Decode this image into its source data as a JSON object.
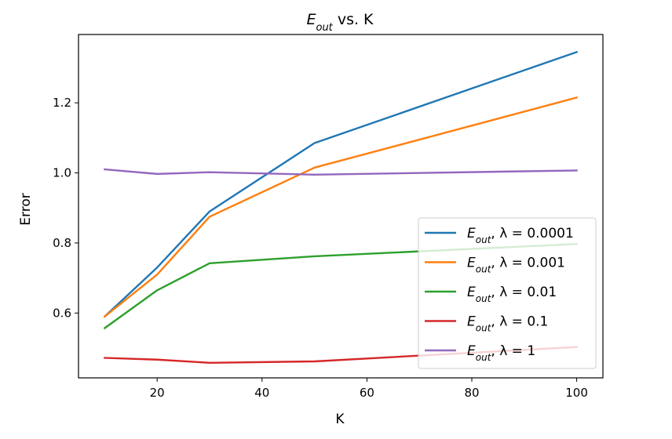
{
  "chart_data": {
    "type": "line",
    "title": {
      "symbol": "E",
      "subscript": "out",
      "suffix": " vs. K"
    },
    "xlabel": "K",
    "ylabel": "Error",
    "xlim": [
      5,
      105
    ],
    "ylim": [
      0.415,
      1.395
    ],
    "xticks": [
      20,
      40,
      60,
      80,
      100
    ],
    "yticks": [
      0.6,
      0.8,
      1.0,
      1.2
    ],
    "xtick_labels": [
      "20",
      "40",
      "60",
      "80",
      "100"
    ],
    "ytick_labels": [
      "0.6",
      "0.8",
      "1.0",
      "1.2"
    ],
    "x": [
      10,
      20,
      30,
      50,
      100
    ],
    "grid": false,
    "legend_position": "lower right",
    "series": [
      {
        "name": "E_out, λ = 0.0001",
        "label_symbol": "E",
        "label_sub": "out",
        "label_rest": ", λ = 0.0001",
        "color": "#1f77b4",
        "values": [
          0.59,
          0.73,
          0.89,
          1.085,
          1.345
        ]
      },
      {
        "name": "E_out, λ = 0.001",
        "label_symbol": "E",
        "label_sub": "out",
        "label_rest": ", λ = 0.001",
        "color": "#ff7f0e",
        "values": [
          0.59,
          0.71,
          0.875,
          1.015,
          1.215
        ]
      },
      {
        "name": "E_out, λ = 0.01",
        "label_symbol": "E",
        "label_sub": "out",
        "label_rest": ", λ = 0.01",
        "color": "#2ca02c",
        "values": [
          0.557,
          0.665,
          0.742,
          0.762,
          0.797
        ]
      },
      {
        "name": "E_out, λ = 0.1",
        "label_symbol": "E",
        "label_sub": "out",
        "label_rest": ", λ = 0.1",
        "color": "#d62728",
        "values": [
          0.472,
          0.467,
          0.458,
          0.462,
          0.503
        ]
      },
      {
        "name": "E_out, λ = 1",
        "label_symbol": "E",
        "label_sub": "out",
        "label_rest": ", λ = 1",
        "color": "#9467bd",
        "values": [
          1.01,
          0.997,
          1.002,
          0.995,
          1.007
        ]
      }
    ]
  }
}
